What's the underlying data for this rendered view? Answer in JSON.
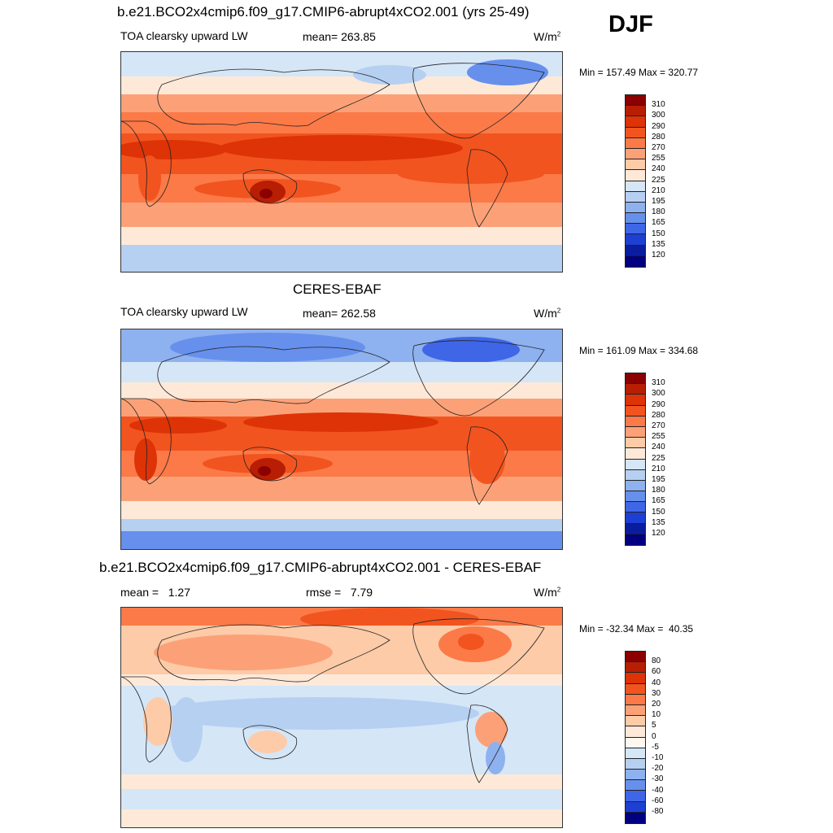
{
  "season": "DJF",
  "panels": [
    {
      "title": "b.e21.BCO2x4cmip6.f09_g17.CMIP6-abrupt4xCO2.001 (yrs 25-49)",
      "left_label": "TOA clearsky upward LW",
      "stat_label": "mean= 263.85",
      "units": "W/m",
      "units_exp": "2",
      "minmax": "Min = 157.49 Max = 320.77"
    },
    {
      "title": "CERES-EBAF",
      "left_label": "TOA clearsky upward LW",
      "stat_label": "mean= 262.58",
      "units": "W/m",
      "units_exp": "2",
      "minmax": "Min = 161.09 Max = 334.68"
    },
    {
      "title": "b.e21.BCO2x4cmip6.f09_g17.CMIP6-abrupt4xCO2.001 - CERES-EBAF",
      "left_label": "mean =   1.27",
      "stat_label": "rmse =   7.79",
      "units": "W/m",
      "units_exp": "2",
      "minmax": "Min = -32.34 Max =  40.35"
    }
  ],
  "chart_data": [
    {
      "type": "heatmap",
      "title": "b.e21.BCO2x4cmip6.f09_g17.CMIP6-abrupt4xCO2.001 (yrs 25-49)",
      "variable": "TOA clearsky upward LW",
      "units": "W/m2",
      "mean": 263.85,
      "min": 157.49,
      "max": 320.77,
      "levels": [
        "310",
        "300",
        "290",
        "280",
        "270",
        "255",
        "240",
        "225",
        "210",
        "195",
        "180",
        "165",
        "150",
        "135",
        "120"
      ],
      "colors": [
        "#8b0000",
        "#b81e03",
        "#dd3307",
        "#f2541f",
        "#fb7a48",
        "#fca177",
        "#fdcba8",
        "#fee9d9",
        "#d5e6f7",
        "#b6d0f2",
        "#8eb1ef",
        "#6690ec",
        "#3f66e7",
        "#1d3fd3",
        "#0a1d9e",
        "#000080"
      ]
    },
    {
      "type": "heatmap",
      "title": "CERES-EBAF",
      "variable": "TOA clearsky upward LW",
      "units": "W/m2",
      "mean": 262.58,
      "min": 161.09,
      "max": 334.68,
      "levels": [
        "310",
        "300",
        "290",
        "280",
        "270",
        "255",
        "240",
        "225",
        "210",
        "195",
        "180",
        "165",
        "150",
        "135",
        "120"
      ],
      "colors": [
        "#8b0000",
        "#b81e03",
        "#dd3307",
        "#f2541f",
        "#fb7a48",
        "#fca177",
        "#fdcba8",
        "#fee9d9",
        "#d5e6f7",
        "#b6d0f2",
        "#8eb1ef",
        "#6690ec",
        "#3f66e7",
        "#1d3fd3",
        "#0a1d9e",
        "#000080"
      ]
    },
    {
      "type": "heatmap",
      "title": "b.e21.BCO2x4cmip6.f09_g17.CMIP6-abrupt4xCO2.001 - CERES-EBAF",
      "variable": "difference",
      "units": "W/m2",
      "mean": 1.27,
      "rmse": 7.79,
      "min": -32.34,
      "max": 40.35,
      "levels": [
        "80",
        "60",
        "40",
        "30",
        "20",
        "10",
        "5",
        "0",
        "-5",
        "-10",
        "-20",
        "-30",
        "-40",
        "-60",
        "-80"
      ],
      "colors": [
        "#8b0000",
        "#b81e03",
        "#dd3307",
        "#f2541f",
        "#fb7a48",
        "#fca177",
        "#fdcba8",
        "#fee9d9",
        "#fff7f0",
        "#d5e6f7",
        "#b6d0f2",
        "#8eb1ef",
        "#6690ec",
        "#3f66e7",
        "#1d3fd3",
        "#000080"
      ]
    }
  ]
}
